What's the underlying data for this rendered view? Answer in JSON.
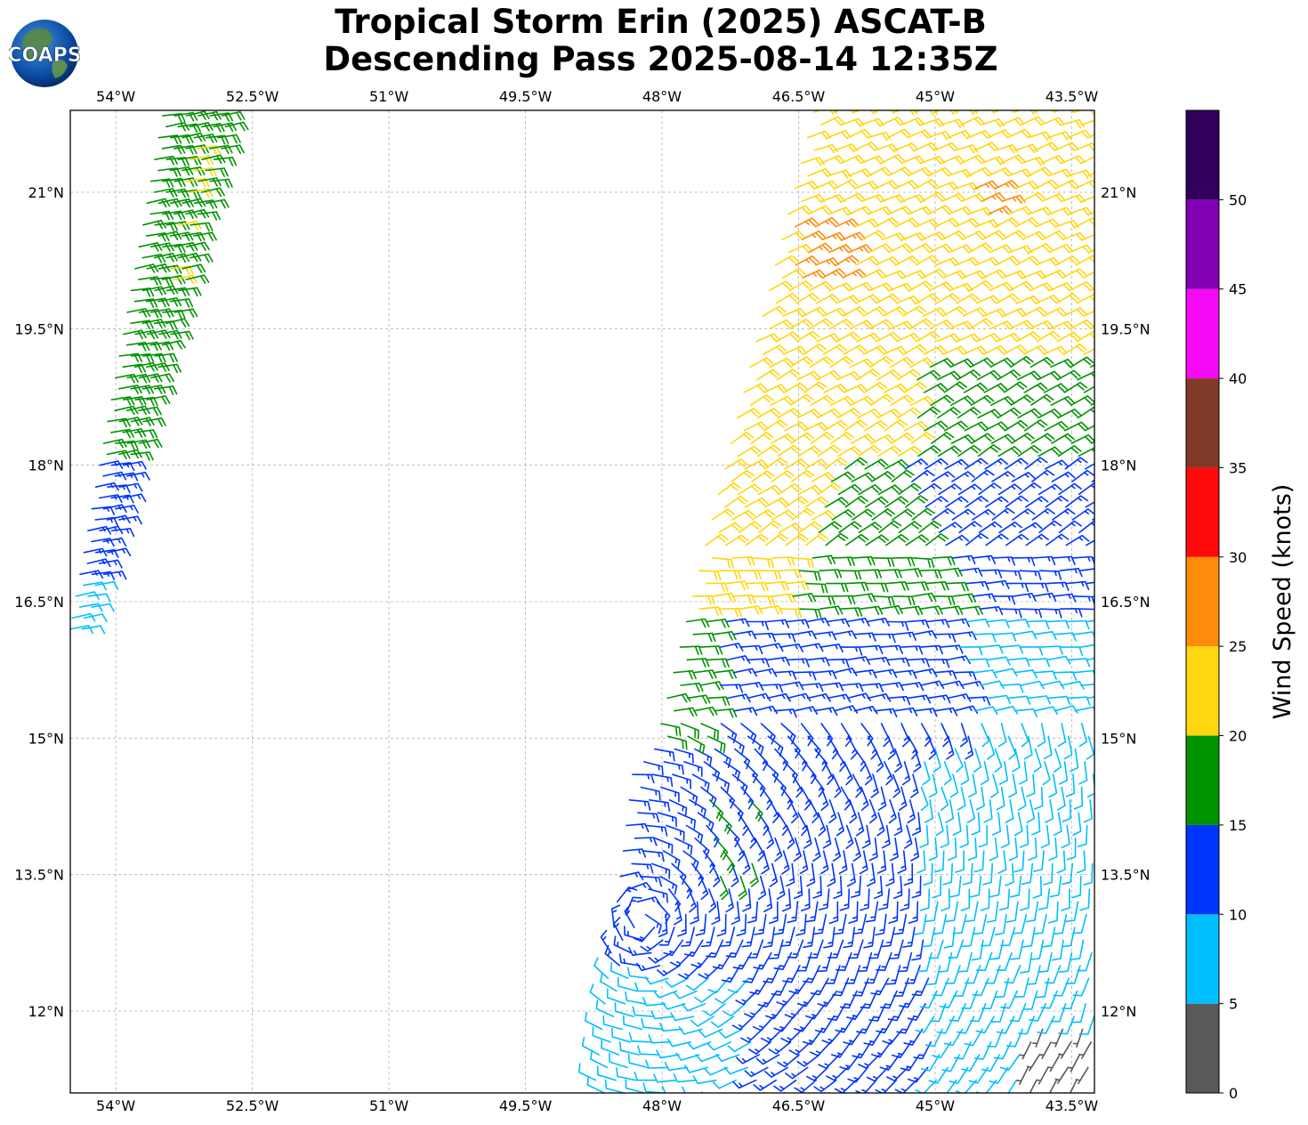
{
  "header": {
    "title_line1": "Tropical Storm Erin (2025) ASCAT-B",
    "title_line2": "Descending Pass 2025-08-14 12:35Z",
    "logo_text": "COAPS"
  },
  "chart_data": {
    "type": "wind-barb-map",
    "title": "Tropical Storm Erin (2025) ASCAT-B Descending Pass 2025-08-14 12:35Z",
    "xlim": [
      -54.5,
      -43.25
    ],
    "ylim": [
      11.1,
      21.9
    ],
    "grid": true,
    "lon_ticks": [
      -54,
      -52.5,
      -51,
      -49.5,
      -48,
      -46.5,
      -45,
      -43.5
    ],
    "lon_tick_labels": [
      "54°W",
      "52.5°W",
      "51°W",
      "49.5°W",
      "48°W",
      "46.5°W",
      "45°W",
      "43.5°W"
    ],
    "lat_ticks": [
      12,
      13.5,
      15,
      16.5,
      18,
      19.5,
      21
    ],
    "lat_tick_labels": [
      "12°N",
      "13.5°N",
      "15°N",
      "16.5°N",
      "18°N",
      "19.5°N",
      "21°N"
    ],
    "colorbar": {
      "label": "Wind Speed (knots)",
      "tick_values": [
        0,
        5,
        10,
        15,
        20,
        25,
        30,
        35,
        40,
        45,
        50
      ],
      "tick_labels": [
        "0",
        "5",
        "10",
        "15",
        "20",
        "25",
        "30",
        "35",
        "40",
        "45",
        "50"
      ],
      "bins": [
        {
          "min": 0,
          "max": 5,
          "color": "#595959"
        },
        {
          "min": 5,
          "max": 10,
          "color": "#00bfff"
        },
        {
          "min": 10,
          "max": 15,
          "color": "#0035ff"
        },
        {
          "min": 15,
          "max": 20,
          "color": "#009300"
        },
        {
          "min": 20,
          "max": 25,
          "color": "#ffd60f"
        },
        {
          "min": 25,
          "max": 30,
          "color": "#ff8b0a"
        },
        {
          "min": 30,
          "max": 35,
          "color": "#ff0a0a"
        },
        {
          "min": 35,
          "max": 40,
          "color": "#823a28"
        },
        {
          "min": 40,
          "max": 45,
          "color": "#f50af5"
        },
        {
          "min": 45,
          "max": 50,
          "color": "#8200b3"
        },
        {
          "min": 50,
          "max": 55,
          "color": "#30005c"
        }
      ]
    },
    "swaths": [
      {
        "name": "west swath",
        "lat_range": [
          16.2,
          21.9
        ],
        "speed_by_latitude": [
          {
            "lat_min": 16.2,
            "lat_max": 16.8,
            "speed_kt": 8
          },
          {
            "lat_min": 16.8,
            "lat_max": 18.1,
            "speed_kt": 13
          },
          {
            "lat_min": 18.1,
            "lat_max": 21.9,
            "speed_kt": 18
          }
        ],
        "wind_from_deg": 80
      },
      {
        "name": "east swath",
        "lat_range": [
          11.1,
          21.9
        ],
        "direction_note": "cyclonic circulation south-east, easterly to north",
        "speed_range_kt": [
          3,
          28
        ],
        "max_speed_kt": 28
      }
    ]
  }
}
